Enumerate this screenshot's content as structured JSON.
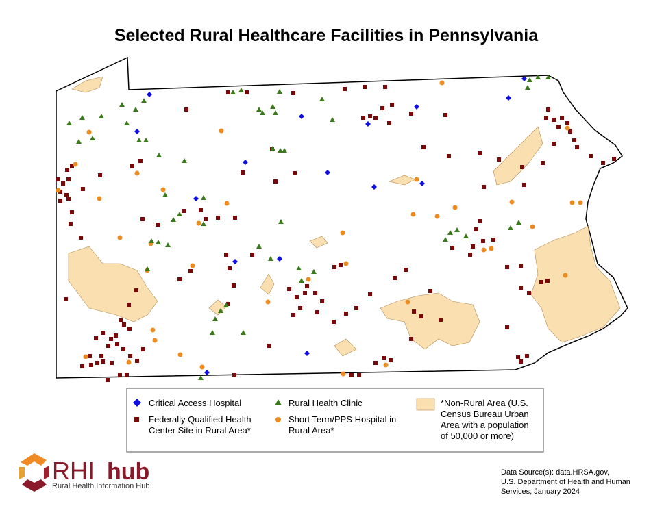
{
  "title": "Selected Rural Healthcare Facilities in Pennsylvania",
  "legend": {
    "items": [
      {
        "label": [
          "Critical Access Hospital"
        ]
      },
      {
        "label": [
          "Rural Health Clinic"
        ]
      },
      {
        "label": [
          "Federally Qualified Health",
          "Center Site in Rural Area*"
        ]
      },
      {
        "label": [
          "Short Term/PPS Hospital in",
          "Rural Area*"
        ]
      },
      {
        "label": [
          "*Non-Rural Area (U.S.",
          "Census Bureau Urban",
          "Area with a population",
          "of 50,000 or more)"
        ]
      }
    ]
  },
  "logo": {
    "brand": "RHI",
    "brand_suffix": "hub",
    "tagline": "Rural Health Information Hub"
  },
  "source": [
    "Data Source(s): data.HRSA.gov,",
    "U.S. Department of Health and Human",
    "Services, January 2024"
  ]
}
